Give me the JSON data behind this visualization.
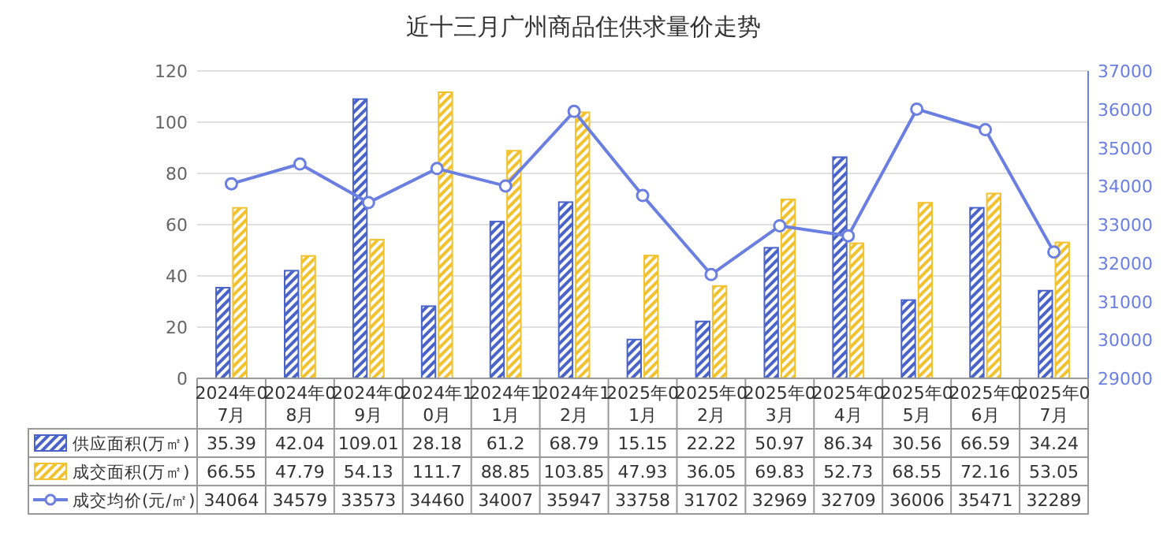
{
  "chart_data": {
    "type": "bar",
    "title": "近十三月广州商品住供求量价走势",
    "categories": [
      "2024年07月",
      "2024年08月",
      "2024年09月",
      "2024年10月",
      "2024年11月",
      "2024年12月",
      "2025年01月",
      "2025年02月",
      "2025年03月",
      "2025年04月",
      "2025年05月",
      "2025年06月",
      "2025年07月"
    ],
    "series": [
      {
        "name": "供应面积(万㎡)",
        "color": "#4a63c8",
        "values": [
          35.39,
          42.04,
          109.01,
          28.18,
          61.2,
          68.79,
          15.15,
          22.22,
          50.97,
          86.34,
          30.56,
          66.59,
          34.24
        ]
      },
      {
        "name": "成交面积(万㎡)",
        "color": "#f2c12e",
        "values": [
          66.55,
          47.79,
          54.13,
          111.7,
          88.85,
          103.85,
          47.93,
          36.05,
          69.83,
          52.73,
          68.55,
          72.16,
          53.05
        ]
      },
      {
        "name": "成交均价(元/㎡)",
        "type": "line",
        "axis": "y2",
        "color": "#6b7fe0",
        "values": [
          34064,
          34579,
          33573,
          34460,
          34007,
          35947,
          33758,
          31702,
          32969,
          32709,
          36006,
          35471,
          32289
        ]
      }
    ],
    "ylim": [
      0,
      120
    ],
    "yticks": [
      0,
      20,
      40,
      60,
      80,
      100,
      120
    ],
    "y2lim": [
      29000,
      37000
    ],
    "y2ticks": [
      29000,
      30000,
      31000,
      32000,
      33000,
      34000,
      35000,
      36000,
      37000
    ],
    "grid": "y",
    "legend": "bottom",
    "data_labels": true,
    "marker": "circle"
  }
}
